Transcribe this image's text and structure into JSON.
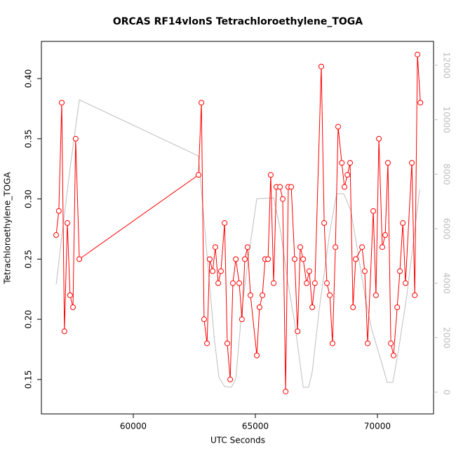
{
  "chart_data": {
    "type": "line",
    "title": "ORCAS RF14vlonS Tetrachloroethylene_TOGA",
    "x_label": "UTC Seconds",
    "y_label": "Tetrachloroethylene_TOGA",
    "xlim": [
      56236,
      72299
    ],
    "ylim": [
      0.1214,
      0.4309
    ],
    "y2lim": [
      -798,
      12875
    ],
    "xticks": [
      60000,
      65000,
      70000
    ],
    "yticks": [
      0.15,
      {
        "value": 0.2,
        "label": "0.20"
      },
      0.25,
      {
        "value": 0.3,
        "label": "0.30"
      },
      0.35,
      {
        "value": 0.4,
        "label": "0.40"
      }
    ],
    "y2ticks": [
      0,
      2000,
      4000,
      6000,
      8000,
      10000,
      12000
    ],
    "series": [
      {
        "color": "#bebebe",
        "axis": "y2",
        "x": [
          56840,
          57130,
          57410,
          57790,
          62670,
          63310,
          63510,
          63740,
          64020,
          64200,
          64450,
          64740,
          65060,
          65750,
          66040,
          66320,
          66610,
          66840,
          66960,
          67180,
          67330,
          67620,
          68050,
          68330,
          68620,
          68910,
          69200,
          69480,
          69770,
          70200,
          70400,
          70630,
          70860,
          71210,
          71490,
          71730
        ],
        "values": [
          3960,
          6150,
          8210,
          10730,
          8670,
          2030,
          540,
          210,
          180,
          490,
          3060,
          5120,
          7100,
          7130,
          5890,
          4090,
          2550,
          1000,
          180,
          180,
          750,
          3060,
          5890,
          7280,
          7280,
          6670,
          5120,
          3580,
          2290,
          1000,
          360,
          360,
          1520,
          3580,
          5640,
          7440
        ]
      },
      {
        "color": "#ff0000",
        "x": [
          56840,
          56950,
          57070,
          57180,
          57300,
          57410,
          57530,
          57640,
          57790,
          62670,
          62790,
          62900,
          63020,
          63130,
          63250,
          63360,
          63480,
          63590,
          63740,
          63850,
          63970,
          64080,
          64200,
          64340,
          64450,
          64570,
          64680,
          64800,
          65060,
          65170,
          65290,
          65400,
          65520,
          65630,
          65750,
          65860,
          66010,
          66120,
          66240,
          66350,
          66470,
          66610,
          66730,
          66840,
          66960,
          67100,
          67210,
          67330,
          67440,
          67700,
          67820,
          67930,
          68050,
          68160,
          68280,
          68390,
          68540,
          68650,
          68770,
          68880,
          69000,
          69110,
          69370,
          69480,
          69600,
          69830,
          69940,
          70060,
          70200,
          70320,
          70430,
          70550,
          70660,
          70810,
          70920,
          71040,
          71150,
          71410,
          71530,
          71640,
          71760
        ],
        "values": [
          0.27,
          0.29,
          0.38,
          0.19,
          0.28,
          0.22,
          0.21,
          0.35,
          0.25,
          0.32,
          0.38,
          0.2,
          0.18,
          0.25,
          0.24,
          0.26,
          0.23,
          0.24,
          0.28,
          0.18,
          0.15,
          0.23,
          0.25,
          0.23,
          0.2,
          0.25,
          0.26,
          0.22,
          0.17,
          0.21,
          0.22,
          0.25,
          0.25,
          0.32,
          0.23,
          0.31,
          0.31,
          0.3,
          0.14,
          0.31,
          0.31,
          0.25,
          0.19,
          0.26,
          0.25,
          0.23,
          0.24,
          0.21,
          0.23,
          0.41,
          0.28,
          0.23,
          0.22,
          0.18,
          0.26,
          0.36,
          0.33,
          0.31,
          0.32,
          0.33,
          0.21,
          0.25,
          0.26,
          0.24,
          0.18,
          0.29,
          0.22,
          0.35,
          0.26,
          0.27,
          0.33,
          0.18,
          0.17,
          0.21,
          0.24,
          0.28,
          0.23,
          0.33,
          0.22,
          0.42,
          0.38
        ]
      }
    ]
  }
}
